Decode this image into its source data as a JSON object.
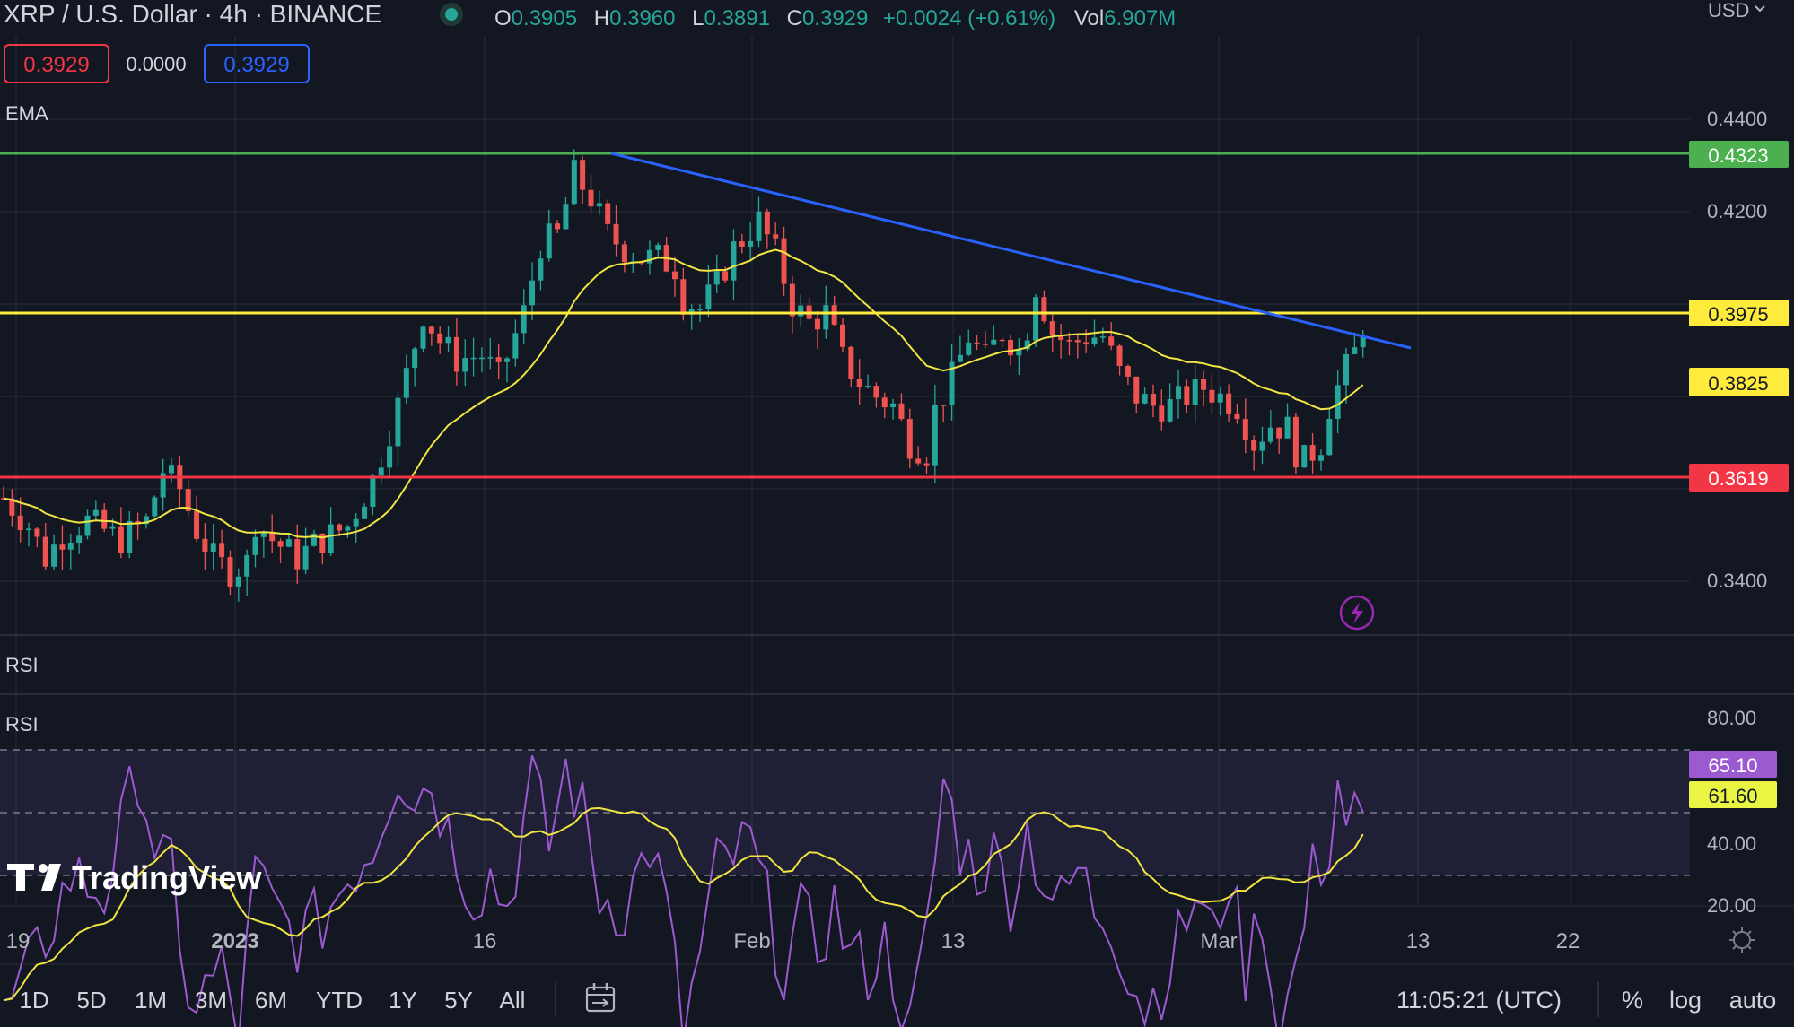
{
  "header": {
    "symbol": "XRP / U.S. Dollar · 4h · BINANCE",
    "o_label": "O",
    "o_value": "0.3905",
    "h_label": "H",
    "h_value": "0.3960",
    "l_label": "L",
    "l_value": "0.3891",
    "c_label": "C",
    "c_value": "0.3929",
    "change": "+0.0024 (+0.61%)",
    "vol_label": "Vol",
    "vol_value": "6.907M",
    "currency": "USD"
  },
  "quote_boxes": {
    "sell": "0.3929",
    "spread": "0.0000",
    "buy": "0.3929"
  },
  "indicator_labels": {
    "ema": "EMA",
    "rsi_pane_title": "RSI",
    "rsi_inner": "RSI"
  },
  "price_axis": {
    "ticks": [
      "0.4400",
      "0.4200",
      "0.3400"
    ]
  },
  "rsi_axis": {
    "ticks": [
      "80.00",
      "40.00",
      "20.00"
    ]
  },
  "tags": {
    "green": "0.4323",
    "yellow": "0.3975",
    "ema": "0.3825",
    "red": "0.3619",
    "rsi": "65.10",
    "rsi_ma": "61.60"
  },
  "time_axis": [
    "19",
    "2023",
    "16",
    "Feb",
    "13",
    "Mar",
    "13",
    "22"
  ],
  "toolbar": {
    "ranges": [
      "1D",
      "5D",
      "1M",
      "3M",
      "6M",
      "YTD",
      "1Y",
      "5Y",
      "All"
    ],
    "clock": "11:05:21 (UTC)",
    "percent": "%",
    "log": "log",
    "auto": "auto"
  },
  "brand": "TradingView",
  "colors": {
    "background": "#131722",
    "up": "#26a69a",
    "down": "#ef5350",
    "ema": "#f0e442",
    "rsi": "#9c5ad1",
    "support_red": "#f23645",
    "resistance_green": "#4caf50",
    "level_yellow": "#ffeb3b",
    "trendline_blue": "#2962ff"
  },
  "chart_data": [
    {
      "type": "candlestick",
      "title": "XRP / U.S. Dollar · 4h · BINANCE",
      "ylim": [
        0.33,
        0.45
      ],
      "x_ticks": [
        "19",
        "2023",
        "16",
        "Feb",
        "13",
        "Mar",
        "13",
        "22"
      ],
      "horizontal_levels": [
        {
          "value": 0.4323,
          "color": "green"
        },
        {
          "value": 0.3975,
          "color": "yellow"
        },
        {
          "value": 0.3619,
          "color": "red"
        }
      ],
      "trendline": {
        "from_value": 0.4323,
        "to_value": 0.391
      },
      "anchors": [
        [
          0,
          0.358
        ],
        [
          3,
          0.352
        ],
        [
          5,
          0.345
        ],
        [
          7,
          0.35
        ],
        [
          10,
          0.353
        ],
        [
          14,
          0.349
        ],
        [
          17,
          0.353
        ],
        [
          19,
          0.364
        ],
        [
          21,
          0.36
        ],
        [
          23,
          0.351
        ],
        [
          25,
          0.345
        ],
        [
          27,
          0.342
        ],
        [
          29,
          0.344
        ],
        [
          30,
          0.353
        ],
        [
          32,
          0.349
        ],
        [
          35,
          0.345
        ],
        [
          37,
          0.348
        ],
        [
          41,
          0.352
        ],
        [
          44,
          0.362
        ],
        [
          47,
          0.378
        ],
        [
          50,
          0.398
        ],
        [
          52,
          0.392
        ],
        [
          54,
          0.388
        ],
        [
          57,
          0.389
        ],
        [
          59,
          0.384
        ],
        [
          62,
          0.398
        ],
        [
          64,
          0.413
        ],
        [
          66,
          0.415
        ],
        [
          68,
          0.428
        ],
        [
          70,
          0.423
        ],
        [
          72,
          0.415
        ],
        [
          74,
          0.412
        ],
        [
          76,
          0.41
        ],
        [
          78,
          0.41
        ],
        [
          80,
          0.408
        ],
        [
          81,
          0.401
        ],
        [
          83,
          0.399
        ],
        [
          85,
          0.404
        ],
        [
          87,
          0.412
        ],
        [
          89,
          0.416
        ],
        [
          90,
          0.418
        ],
        [
          92,
          0.411
        ],
        [
          94,
          0.4
        ],
        [
          96,
          0.396
        ],
        [
          98,
          0.398
        ],
        [
          100,
          0.388
        ],
        [
          102,
          0.383
        ],
        [
          104,
          0.38
        ],
        [
          106,
          0.378
        ],
        [
          108,
          0.37
        ],
        [
          110,
          0.368
        ],
        [
          111,
          0.377
        ],
        [
          113,
          0.384
        ],
        [
          115,
          0.393
        ],
        [
          117,
          0.388
        ],
        [
          119,
          0.394
        ],
        [
          121,
          0.39
        ],
        [
          122,
          0.395
        ],
        [
          123,
          0.404
        ],
        [
          125,
          0.394
        ],
        [
          127,
          0.391
        ],
        [
          129,
          0.393
        ],
        [
          131,
          0.393
        ],
        [
          133,
          0.385
        ],
        [
          135,
          0.38
        ],
        [
          137,
          0.378
        ],
        [
          139,
          0.378
        ],
        [
          141,
          0.38
        ],
        [
          143,
          0.382
        ],
        [
          145,
          0.38
        ],
        [
          147,
          0.378
        ],
        [
          149,
          0.37
        ],
        [
          151,
          0.374
        ],
        [
          153,
          0.373
        ],
        [
          154,
          0.368
        ],
        [
          155,
          0.366
        ],
        [
          157,
          0.37
        ],
        [
          158,
          0.378
        ],
        [
          160,
          0.386
        ],
        [
          162,
          0.393
        ]
      ],
      "ema_last": 0.3825,
      "last_close": 0.3929
    },
    {
      "type": "line",
      "title": "RSI",
      "ylim": [
        20,
        80
      ],
      "y_ticks": [
        80,
        40,
        20
      ],
      "bands": [
        70,
        50,
        30
      ],
      "anchors": [
        [
          0,
          32
        ],
        [
          4,
          42
        ],
        [
          8,
          55
        ],
        [
          12,
          52
        ],
        [
          16,
          72
        ],
        [
          18,
          60
        ],
        [
          20,
          55
        ],
        [
          21,
          40
        ],
        [
          23,
          35
        ],
        [
          26,
          40
        ],
        [
          28,
          30
        ],
        [
          30,
          55
        ],
        [
          32,
          50
        ],
        [
          35,
          45
        ],
        [
          38,
          48
        ],
        [
          41,
          55
        ],
        [
          44,
          60
        ],
        [
          47,
          72
        ],
        [
          49,
          68
        ],
        [
          51,
          70
        ],
        [
          53,
          62
        ],
        [
          56,
          52
        ],
        [
          58,
          55
        ],
        [
          60,
          50
        ],
        [
          63,
          70
        ],
        [
          65,
          60
        ],
        [
          67,
          72
        ],
        [
          69,
          65
        ],
        [
          71,
          52
        ],
        [
          74,
          50
        ],
        [
          77,
          60
        ],
        [
          79,
          50
        ],
        [
          81,
          30
        ],
        [
          83,
          42
        ],
        [
          85,
          56
        ],
        [
          87,
          58
        ],
        [
          89,
          60
        ],
        [
          91,
          50
        ],
        [
          93,
          40
        ],
        [
          95,
          48
        ],
        [
          97,
          44
        ],
        [
          99,
          50
        ],
        [
          101,
          42
        ],
        [
          103,
          40
        ],
        [
          105,
          44
        ],
        [
          107,
          35
        ],
        [
          108,
          30
        ],
        [
          110,
          45
        ],
        [
          112,
          70
        ],
        [
          114,
          60
        ],
        [
          116,
          56
        ],
        [
          118,
          58
        ],
        [
          120,
          52
        ],
        [
          122,
          62
        ],
        [
          124,
          54
        ],
        [
          126,
          50
        ],
        [
          128,
          56
        ],
        [
          130,
          50
        ],
        [
          132,
          48
        ],
        [
          134,
          40
        ],
        [
          136,
          34
        ],
        [
          138,
          38
        ],
        [
          140,
          44
        ],
        [
          142,
          52
        ],
        [
          144,
          45
        ],
        [
          146,
          55
        ],
        [
          148,
          40
        ],
        [
          150,
          50
        ],
        [
          151,
          38
        ],
        [
          152,
          30
        ],
        [
          154,
          40
        ],
        [
          156,
          55
        ],
        [
          158,
          60
        ],
        [
          159,
          70
        ],
        [
          160,
          64
        ],
        [
          162,
          65.1
        ]
      ],
      "ma_last": 61.6,
      "last_value": 65.1
    }
  ]
}
